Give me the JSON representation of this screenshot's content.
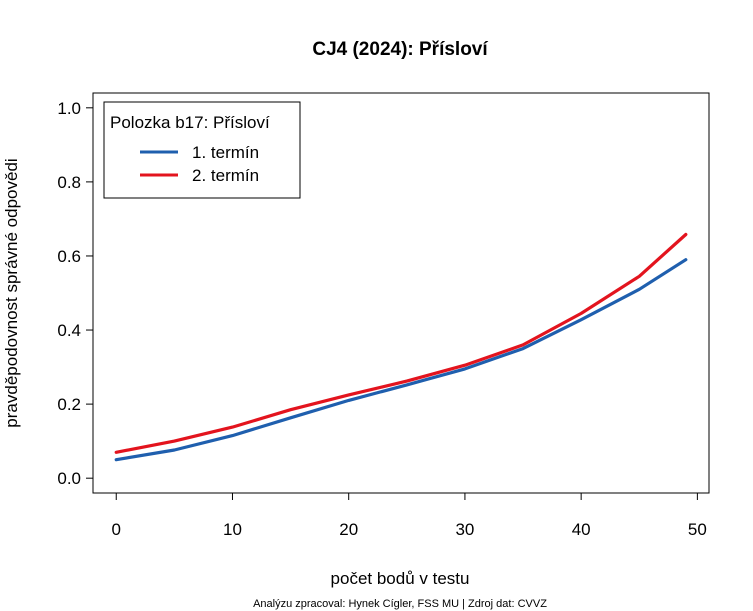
{
  "chart_data": {
    "type": "line",
    "title": "CJ4 (2024): Přísloví",
    "xlabel": "počet bodů v testu",
    "ylabel": "pravděpodovnost správné odpovědi",
    "caption": "Analýzu zpracoval: Hynek Cígler, FSS MU | Zdroj dat: CVVZ",
    "xlim": [
      -2,
      51
    ],
    "ylim": [
      -0.04,
      1.04
    ],
    "xticks": [
      0,
      10,
      20,
      30,
      40,
      50
    ],
    "xtick_labels": [
      "0",
      "10",
      "20",
      "30",
      "40",
      "50"
    ],
    "yticks": [
      0.0,
      0.2,
      0.4,
      0.6,
      0.8,
      1.0
    ],
    "ytick_labels": [
      "0.0",
      "0.2",
      "0.4",
      "0.6",
      "0.8",
      "1.0"
    ],
    "grid": false,
    "legend": {
      "title": "Polozka b17: Přísloví",
      "position": "top-left"
    },
    "series": [
      {
        "name": "1. termín",
        "color": "#1f5fae",
        "x": [
          0,
          5,
          10,
          15,
          20,
          25,
          30,
          35,
          40,
          45,
          49
        ],
        "values": [
          0.05,
          0.076,
          0.115,
          0.163,
          0.21,
          0.252,
          0.295,
          0.35,
          0.428,
          0.51,
          0.59
        ]
      },
      {
        "name": "2. termín",
        "color": "#e3141e",
        "x": [
          0,
          5,
          10,
          15,
          20,
          25,
          30,
          35,
          40,
          45,
          49
        ],
        "values": [
          0.07,
          0.1,
          0.138,
          0.185,
          0.225,
          0.262,
          0.305,
          0.36,
          0.445,
          0.545,
          0.658
        ]
      }
    ]
  }
}
